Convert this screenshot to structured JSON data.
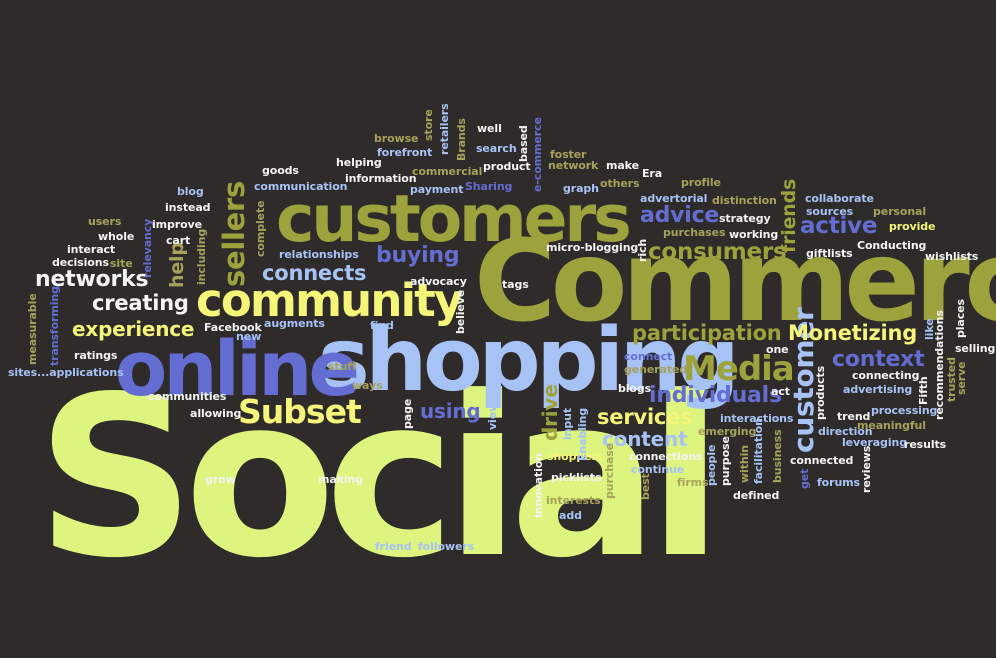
{
  "palette": {
    "background": "#2e2b2a",
    "lime": "#ddf57e",
    "yellow": "#f5f57a",
    "olive": "#9ea23c",
    "khaki": "#a7a15b",
    "blue": "#646ed2",
    "light_blue": "#a7c3f5",
    "white": "#f4f4f4"
  },
  "words": [
    {
      "text": "Social",
      "color": "lime"
    },
    {
      "text": "Commerce",
      "color": "olive"
    },
    {
      "text": "shopping",
      "color": "light_blue"
    },
    {
      "text": "online",
      "color": "blue"
    },
    {
      "text": "customers",
      "color": "olive"
    },
    {
      "text": "community",
      "color": "yellow"
    },
    {
      "text": "Subset",
      "color": "yellow"
    },
    {
      "text": "Media",
      "color": "olive"
    },
    {
      "text": "customer",
      "color": "light_blue"
    },
    {
      "text": "sellers",
      "color": "olive"
    },
    {
      "text": "networks",
      "color": "white"
    },
    {
      "text": "buying",
      "color": "blue"
    },
    {
      "text": "consumers",
      "color": "olive"
    },
    {
      "text": "advice",
      "color": "blue"
    },
    {
      "text": "active",
      "color": "blue"
    },
    {
      "text": "connects",
      "color": "light_blue"
    },
    {
      "text": "creating",
      "color": "white"
    },
    {
      "text": "experience",
      "color": "yellow"
    },
    {
      "text": "participation",
      "color": "olive"
    },
    {
      "text": "Monetizing",
      "color": "yellow"
    },
    {
      "text": "individuals",
      "color": "blue"
    },
    {
      "text": "context",
      "color": "blue"
    },
    {
      "text": "services",
      "color": "yellow"
    },
    {
      "text": "content",
      "color": "light_blue"
    },
    {
      "text": "using",
      "color": "blue"
    },
    {
      "text": "drive",
      "color": "olive"
    },
    {
      "text": "friends",
      "color": "olive"
    },
    {
      "text": "help",
      "color": "khaki"
    },
    {
      "text": "tags",
      "color": "white"
    },
    {
      "text": "advocacy",
      "color": "white"
    },
    {
      "text": "Facebook",
      "color": "white"
    },
    {
      "text": "ratings",
      "color": "white"
    },
    {
      "text": "sites...applications",
      "color": "light_blue"
    },
    {
      "text": "communities",
      "color": "white"
    },
    {
      "text": "allowing",
      "color": "white"
    },
    {
      "text": "grow",
      "color": "white"
    },
    {
      "text": "making",
      "color": "white"
    },
    {
      "text": "stuff",
      "color": "khaki"
    },
    {
      "text": "ways",
      "color": "khaki"
    },
    {
      "text": "friend",
      "color": "light_blue"
    },
    {
      "text": "followers",
      "color": "light_blue"
    },
    {
      "text": "interests",
      "color": "khaki"
    },
    {
      "text": "add",
      "color": "light_blue"
    },
    {
      "text": "picklists",
      "color": "white"
    },
    {
      "text": "shoppers",
      "color": "yellow"
    },
    {
      "text": "innovation",
      "color": "white"
    },
    {
      "text": "connections",
      "color": "white"
    },
    {
      "text": "continue",
      "color": "light_blue"
    },
    {
      "text": "firms",
      "color": "khaki"
    },
    {
      "text": "defined",
      "color": "white"
    },
    {
      "text": "forums",
      "color": "light_blue"
    },
    {
      "text": "connected",
      "color": "white"
    },
    {
      "text": "leveraging",
      "color": "light_blue"
    },
    {
      "text": "results",
      "color": "white"
    },
    {
      "text": "meaningful",
      "color": "khaki"
    },
    {
      "text": "direction",
      "color": "light_blue"
    },
    {
      "text": "processing",
      "color": "light_blue"
    },
    {
      "text": "trend",
      "color": "white"
    },
    {
      "text": "advertising",
      "color": "light_blue"
    },
    {
      "text": "connecting",
      "color": "white"
    },
    {
      "text": "emerging",
      "color": "khaki"
    },
    {
      "text": "interactions",
      "color": "light_blue"
    },
    {
      "text": "act",
      "color": "white"
    },
    {
      "text": "one",
      "color": "white"
    },
    {
      "text": "blogs",
      "color": "white"
    },
    {
      "text": "generated",
      "color": "khaki"
    },
    {
      "text": "connect",
      "color": "blue"
    },
    {
      "text": "goods",
      "color": "white"
    },
    {
      "text": "helping",
      "color": "white"
    },
    {
      "text": "communication",
      "color": "light_blue"
    },
    {
      "text": "information",
      "color": "white"
    },
    {
      "text": "forefront",
      "color": "light_blue"
    },
    {
      "text": "commercial",
      "color": "khaki"
    },
    {
      "text": "payment",
      "color": "light_blue"
    },
    {
      "text": "Sharing",
      "color": "blue"
    },
    {
      "text": "browse",
      "color": "khaki"
    },
    {
      "text": "well",
      "color": "white"
    },
    {
      "text": "search",
      "color": "light_blue"
    },
    {
      "text": "product",
      "color": "white"
    },
    {
      "text": "foster",
      "color": "khaki"
    },
    {
      "text": "network",
      "color": "khaki"
    },
    {
      "text": "make",
      "color": "white"
    },
    {
      "text": "Era",
      "color": "white"
    },
    {
      "text": "others",
      "color": "khaki"
    },
    {
      "text": "graph",
      "color": "light_blue"
    },
    {
      "text": "profile",
      "color": "khaki"
    },
    {
      "text": "advertorial",
      "color": "light_blue"
    },
    {
      "text": "purchases",
      "color": "khaki"
    },
    {
      "text": "distinction",
      "color": "khaki"
    },
    {
      "text": "strategy",
      "color": "white"
    },
    {
      "text": "working",
      "color": "white"
    },
    {
      "text": "collaborate",
      "color": "light_blue"
    },
    {
      "text": "sources",
      "color": "light_blue"
    },
    {
      "text": "personal",
      "color": "khaki"
    },
    {
      "text": "provide",
      "color": "yellow"
    },
    {
      "text": "giftlists",
      "color": "white"
    },
    {
      "text": "Conducting",
      "color": "white"
    },
    {
      "text": "wishlists",
      "color": "white"
    },
    {
      "text": "micro-blogging",
      "color": "white"
    },
    {
      "text": "relationships",
      "color": "light_blue"
    },
    {
      "text": "find",
      "color": "light_blue"
    },
    {
      "text": "augments",
      "color": "light_blue"
    },
    {
      "text": "new",
      "color": "light_blue"
    },
    {
      "text": "improve",
      "color": "white"
    },
    {
      "text": "cart",
      "color": "white"
    },
    {
      "text": "instead",
      "color": "white"
    },
    {
      "text": "blog",
      "color": "light_blue"
    },
    {
      "text": "users",
      "color": "khaki"
    },
    {
      "text": "whole",
      "color": "white"
    },
    {
      "text": "site",
      "color": "khaki"
    },
    {
      "text": "interact",
      "color": "white"
    },
    {
      "text": "decisions",
      "color": "white"
    },
    {
      "text": "selling",
      "color": "white"
    },
    {
      "text": "measurable",
      "color": "khaki"
    },
    {
      "text": "transforming",
      "color": "blue"
    },
    {
      "text": "relevancy",
      "color": "blue"
    },
    {
      "text": "including",
      "color": "khaki"
    },
    {
      "text": "complete",
      "color": "khaki"
    },
    {
      "text": "store",
      "color": "khaki"
    },
    {
      "text": "retailers",
      "color": "light_blue"
    },
    {
      "text": "Brands",
      "color": "khaki"
    },
    {
      "text": "based",
      "color": "white"
    },
    {
      "text": "e-commerce",
      "color": "blue"
    },
    {
      "text": "rich",
      "color": "white"
    },
    {
      "text": "believe",
      "color": "white"
    },
    {
      "text": "page",
      "color": "white"
    },
    {
      "text": "view",
      "color": "light_blue"
    },
    {
      "text": "input",
      "color": "light_blue"
    },
    {
      "text": "Enabling",
      "color": "light_blue"
    },
    {
      "text": "purchase",
      "color": "khaki"
    },
    {
      "text": "best",
      "color": "khaki"
    },
    {
      "text": "people",
      "color": "light_blue"
    },
    {
      "text": "purpose",
      "color": "white"
    },
    {
      "text": "within",
      "color": "khaki"
    },
    {
      "text": "facilitation",
      "color": "light_blue"
    },
    {
      "text": "business",
      "color": "khaki"
    },
    {
      "text": "get",
      "color": "blue"
    },
    {
      "text": "products",
      "color": "white"
    },
    {
      "text": "reviews",
      "color": "white"
    },
    {
      "text": "Fifth",
      "color": "white"
    },
    {
      "text": "trusted",
      "color": "khaki"
    },
    {
      "text": "recommendations",
      "color": "white"
    },
    {
      "text": "like",
      "color": "light_blue"
    },
    {
      "text": "places",
      "color": "white"
    },
    {
      "text": "serve",
      "color": "khaki"
    }
  ]
}
